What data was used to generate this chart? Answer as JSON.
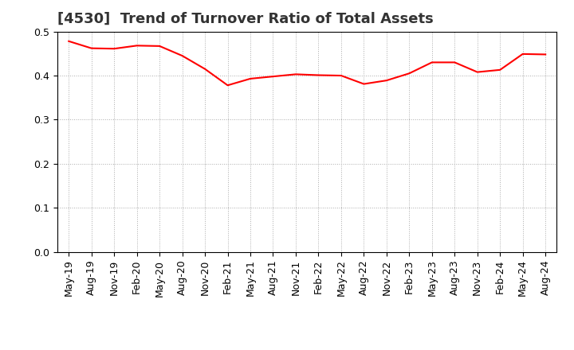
{
  "title": "[4530]  Trend of Turnover Ratio of Total Assets",
  "x_labels": [
    "May-19",
    "Aug-19",
    "Nov-19",
    "Feb-20",
    "May-20",
    "Aug-20",
    "Nov-20",
    "Feb-21",
    "May-21",
    "Aug-21",
    "Nov-21",
    "Feb-22",
    "May-22",
    "Aug-22",
    "Nov-22",
    "Feb-23",
    "May-23",
    "Aug-23",
    "Nov-23",
    "Feb-24",
    "May-24",
    "Aug-24"
  ],
  "values": [
    0.478,
    0.462,
    0.461,
    0.468,
    0.467,
    0.445,
    0.415,
    0.378,
    0.393,
    0.398,
    0.403,
    0.401,
    0.4,
    0.381,
    0.389,
    0.405,
    0.43,
    0.43,
    0.408,
    0.413,
    0.449,
    0.448
  ],
  "line_color": "#FF0000",
  "background_color": "#FFFFFF",
  "grid_color": "#AAAAAA",
  "ylim": [
    0.0,
    0.5
  ],
  "yticks": [
    0.0,
    0.1,
    0.2,
    0.3,
    0.4,
    0.5
  ],
  "title_fontsize": 13,
  "tick_fontsize": 9,
  "title_color": "#333333"
}
